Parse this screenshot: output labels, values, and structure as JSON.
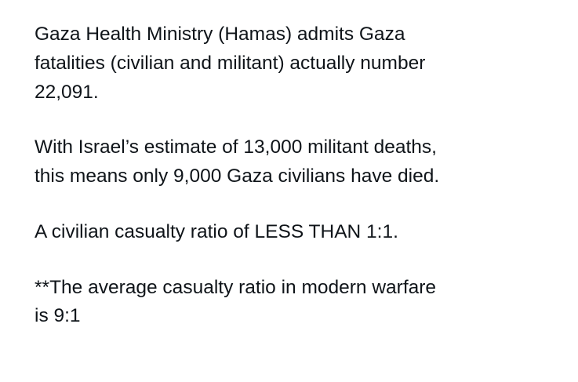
{
  "post": {
    "paragraphs": [
      "Gaza Health Ministry (Hamas) admits Gaza\nfatalities (civilian and militant) actually number\n22,091.",
      "With Israel’s estimate of 13,000 militant deaths,\nthis means only 9,000 Gaza civilians have died.",
      "A civilian casualty ratio of LESS THAN 1:1.",
      "**The average casualty ratio in modern warfare\nis 9:1"
    ]
  }
}
